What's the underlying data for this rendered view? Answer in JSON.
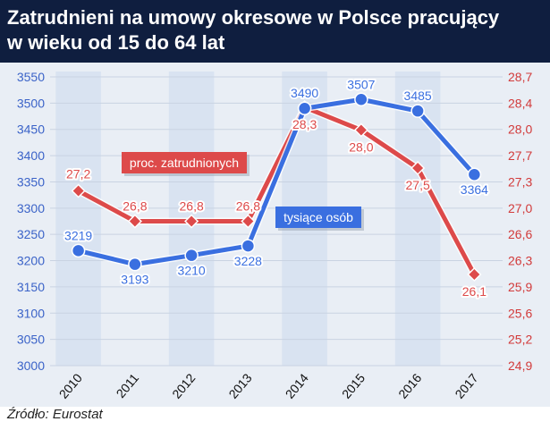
{
  "header": {
    "title_line1": "Zatrudnieni na umowy okresowe w Polsce pracujący",
    "title_line2": "w wieku od 15 do 64 lat"
  },
  "source": "Źródło: Eurostat",
  "colors": {
    "header_bg": "#0f1e3f",
    "blue": "#3a6fe0",
    "red": "#dd4a4a",
    "left_axis": "#3b63c8",
    "right_axis": "#d23b3b"
  },
  "chart_data": {
    "type": "line",
    "categories": [
      "2010",
      "2011",
      "2012",
      "2013",
      "2014",
      "2015",
      "2016",
      "2017"
    ],
    "left_axis": {
      "ylim": [
        3000,
        3550
      ],
      "ticks": [
        "3000",
        "3050",
        "3100",
        "3150",
        "3200",
        "3250",
        "3300",
        "3350",
        "3400",
        "3450",
        "3500",
        "3550"
      ]
    },
    "right_axis": {
      "ylim": [
        24.9,
        28.7
      ],
      "ticks": [
        "24,9",
        "25,2",
        "25,6",
        "25,9",
        "26,3",
        "26,6",
        "27,0",
        "27,3",
        "27,7",
        "28,0",
        "28,4",
        "28,7"
      ]
    },
    "series": [
      {
        "name": "tysiące osób",
        "axis": "left",
        "color": "#3a6fe0",
        "values": [
          3219,
          3193,
          3210,
          3228,
          3490,
          3507,
          3485,
          3364
        ],
        "labels": [
          "3219",
          "3193",
          "3210",
          "3228",
          "3490",
          "3507",
          "3485",
          "3364"
        ]
      },
      {
        "name": "proc. zatrudnionych",
        "axis": "right",
        "color": "#dd4a4a",
        "values": [
          27.2,
          26.8,
          26.8,
          26.8,
          28.3,
          28.0,
          27.5,
          26.1
        ],
        "labels": [
          "27,2",
          "26,8",
          "26,8",
          "26,8",
          "28,3",
          "28,0",
          "27,5",
          "26,1"
        ]
      }
    ],
    "grid": true
  }
}
